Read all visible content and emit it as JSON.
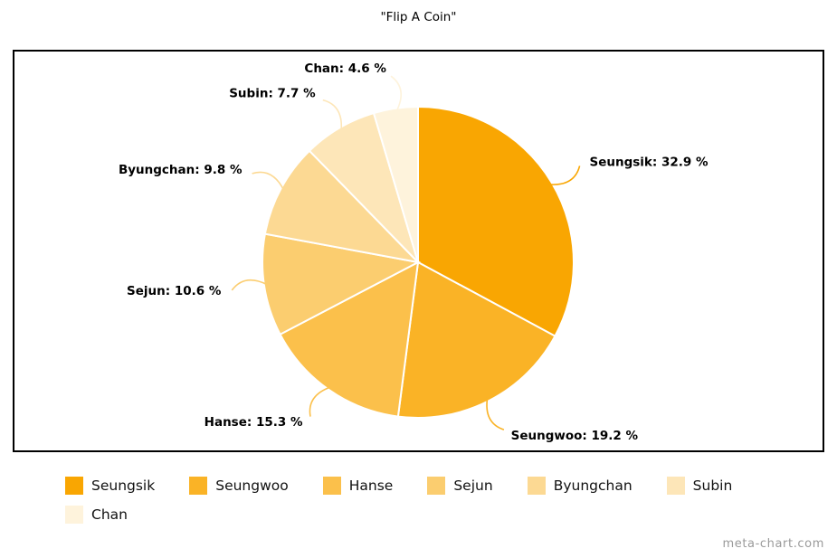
{
  "title": "\"Flip A Coin\"",
  "watermark": "meta-chart.com",
  "chart_data": {
    "type": "pie",
    "title": "\"Flip A Coin\"",
    "labels": [
      "Seungsik",
      "Seungwoo",
      "Hanse",
      "Sejun",
      "Byungchan",
      "Subin",
      "Chan"
    ],
    "values": [
      32.9,
      19.2,
      15.3,
      10.6,
      9.8,
      7.7,
      4.6
    ],
    "colors": [
      "#F9A602",
      "#FAB326",
      "#FBC04B",
      "#FBCD6F",
      "#FCD993",
      "#FDE6B8",
      "#FEF3DC"
    ],
    "value_suffix": " %",
    "label_separator": ": ",
    "slice_border_color": "#ffffff",
    "start_angle": -90,
    "direction": "clockwise",
    "legend_position": "bottom"
  }
}
